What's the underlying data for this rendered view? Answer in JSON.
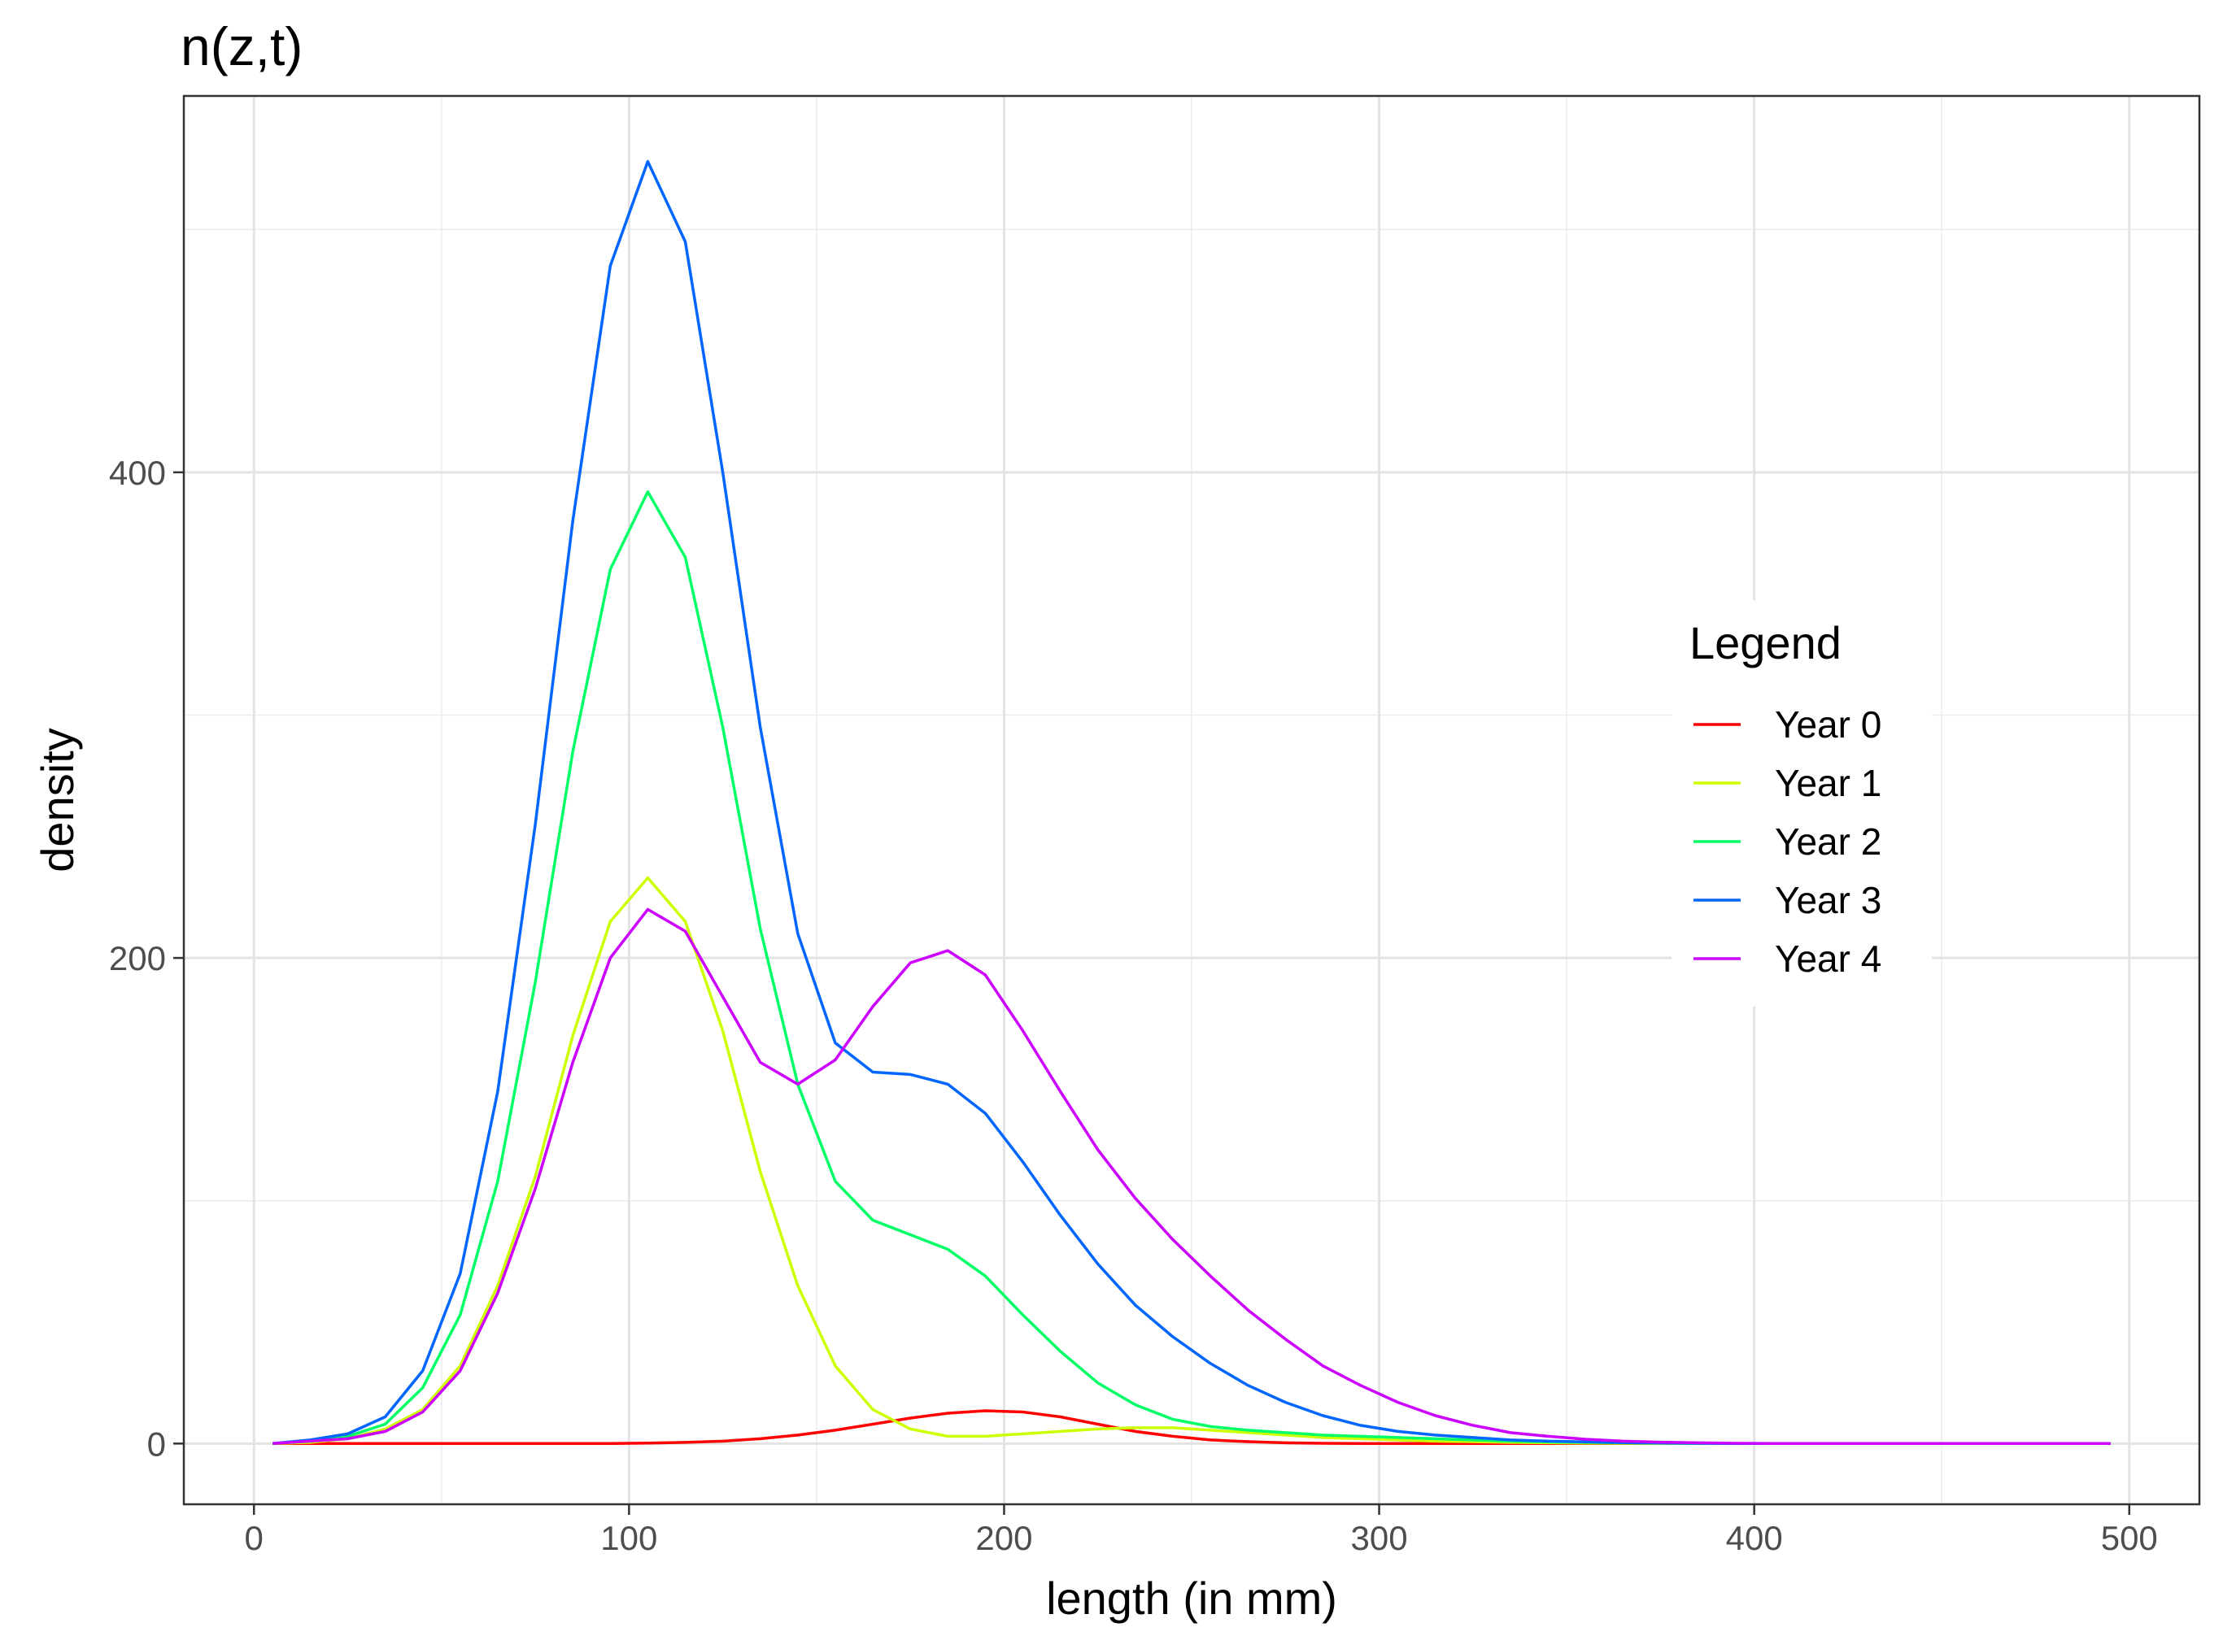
{
  "chart_data": {
    "type": "line",
    "title": "n(z,t)",
    "xlabel": "length (in mm)",
    "ylabel": "density",
    "xlim": [
      -18.7,
      518.7
    ],
    "ylim": [
      -25,
      555
    ],
    "x_ticks": [
      0,
      100,
      200,
      300,
      400,
      500
    ],
    "x_tick_labels": [
      "0",
      "100",
      "200",
      "300",
      "400",
      "500"
    ],
    "x_minor_ticks": [
      50,
      150,
      250,
      350,
      450
    ],
    "y_ticks": [
      0,
      200,
      400
    ],
    "y_tick_labels": [
      "0",
      "200",
      "400"
    ],
    "y_minor_ticks": [
      100,
      300,
      500
    ],
    "grid": true,
    "legend": {
      "title": "Legend",
      "placement": "right-inside"
    },
    "x": [
      5,
      15,
      25,
      35,
      45,
      55,
      65,
      75,
      85,
      95,
      105,
      115,
      125,
      135,
      145,
      155,
      165,
      175,
      185,
      195,
      205,
      215,
      225,
      235,
      245,
      255,
      265,
      275,
      285,
      295,
      305,
      315,
      325,
      335,
      345,
      355,
      365,
      375,
      385,
      395,
      405,
      415,
      425,
      435,
      445,
      455,
      465,
      475,
      485,
      495
    ],
    "series": [
      {
        "name": "Year 0",
        "color": "#ff0000",
        "values": [
          0,
          0,
          0,
          0,
          0,
          0,
          0,
          0,
          0,
          0,
          0.2,
          0.5,
          1,
          2,
          3.5,
          5.5,
          8,
          10.5,
          12.5,
          13.5,
          13,
          11,
          8,
          5,
          3,
          1.5,
          0.8,
          0.3,
          0.1,
          0,
          0,
          0,
          0,
          0,
          0,
          0,
          0,
          0,
          0,
          0,
          0,
          0,
          0,
          0,
          0,
          0,
          0,
          0,
          0,
          0
        ]
      },
      {
        "name": "Year 1",
        "color": "#ccff00",
        "values": [
          0,
          0.5,
          2,
          6,
          14,
          32,
          65,
          110,
          168,
          215,
          233,
          215,
          170,
          112,
          65,
          32,
          14,
          6,
          3,
          3,
          4,
          5,
          6,
          6.5,
          6.5,
          5.5,
          4.5,
          3.5,
          2.5,
          2,
          1.5,
          1,
          0.8,
          0.5,
          0.3,
          0.2,
          0.1,
          0,
          0,
          0,
          0,
          0,
          0,
          0,
          0,
          0,
          0,
          0,
          0,
          0
        ]
      },
      {
        "name": "Year 2",
        "color": "#00ff66",
        "values": [
          0,
          1,
          3,
          8,
          23,
          53,
          108,
          190,
          285,
          360,
          392,
          365,
          295,
          212,
          148,
          108,
          92,
          86,
          80,
          69,
          53,
          38,
          25,
          16,
          10,
          7,
          5.5,
          4.5,
          3.5,
          3,
          2.5,
          2,
          1.5,
          1,
          0.7,
          0.5,
          0.3,
          0.2,
          0,
          0,
          0,
          0,
          0,
          0,
          0,
          0,
          0,
          0,
          0,
          0
        ]
      },
      {
        "name": "Year 3",
        "color": "#0066ff",
        "values": [
          0,
          1.5,
          4,
          11,
          30,
          70,
          145,
          255,
          380,
          485,
          528,
          495,
          400,
          295,
          210,
          165,
          153,
          152,
          148,
          136,
          116,
          94,
          74,
          57,
          44,
          33,
          24,
          17,
          11.5,
          7.5,
          5,
          3.5,
          2.5,
          1.5,
          1,
          0.7,
          0.4,
          0.2,
          0.1,
          0,
          0,
          0,
          0,
          0,
          0,
          0,
          0,
          0,
          0,
          0
        ]
      },
      {
        "name": "Year 4",
        "color": "#cc00ff",
        "values": [
          0,
          1,
          2,
          5,
          13,
          30,
          62,
          105,
          157,
          200,
          220,
          211,
          184,
          157,
          148,
          158,
          180,
          198,
          203,
          193,
          170,
          145,
          121,
          101,
          84,
          69,
          55,
          43,
          32,
          24,
          17,
          11.5,
          7.5,
          4.5,
          3,
          1.8,
          1,
          0.6,
          0.3,
          0.1,
          0,
          0,
          0,
          0,
          0,
          0,
          0,
          0,
          0,
          0
        ]
      }
    ]
  }
}
